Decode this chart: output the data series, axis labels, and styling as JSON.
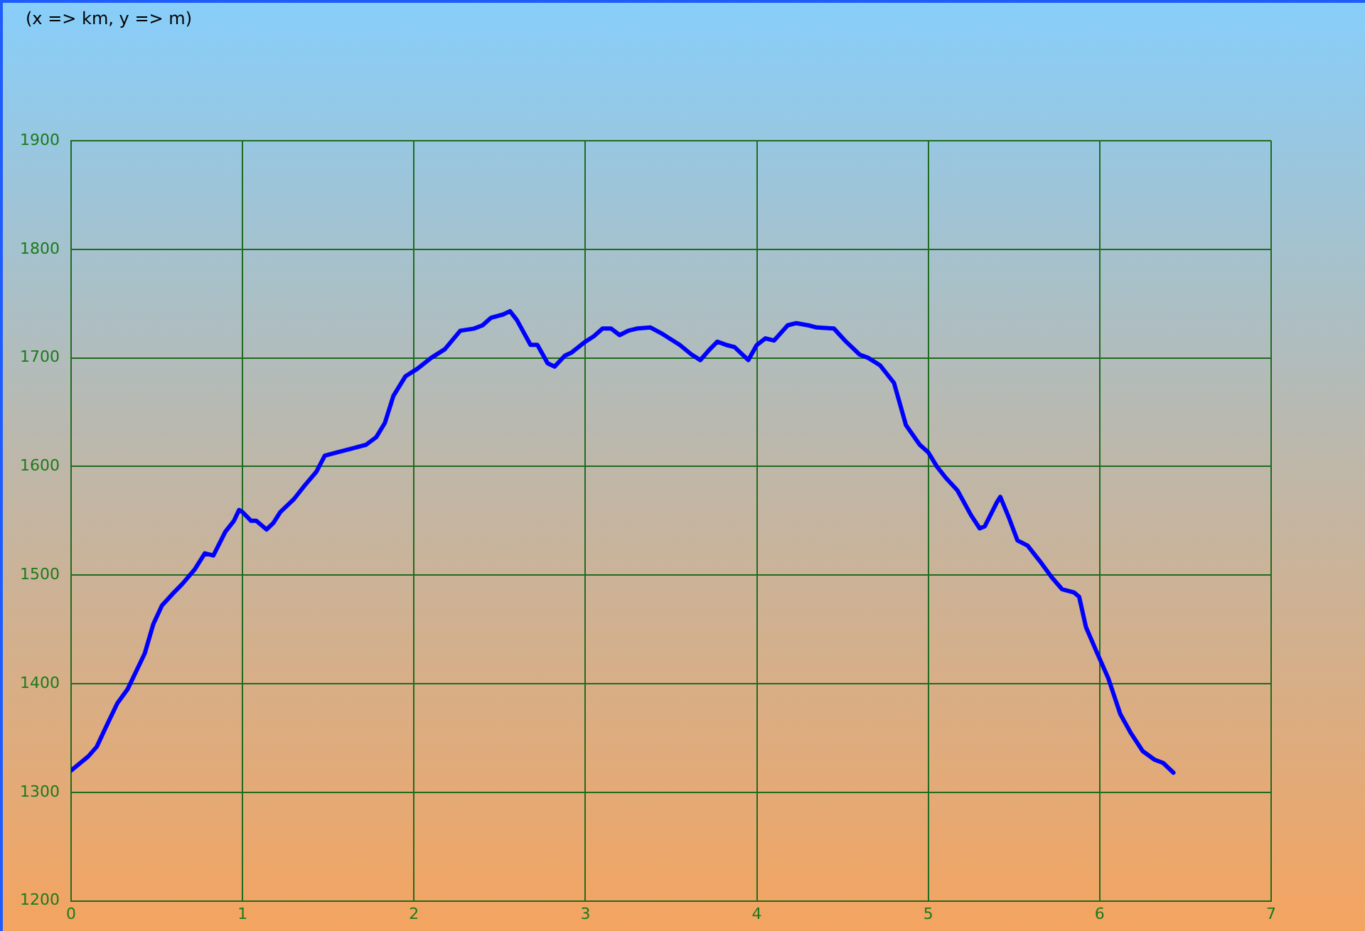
{
  "chart_data": {
    "type": "line",
    "annotations": [
      "(x => km, y => m)"
    ],
    "x": [
      0,
      0.1,
      0.15,
      0.2,
      0.27,
      0.33,
      0.43,
      0.48,
      0.53,
      0.6,
      0.65,
      0.72,
      0.78,
      0.83,
      0.9,
      0.95,
      0.98,
      1.0,
      1.05,
      1.08,
      1.14,
      1.18,
      1.22,
      1.3,
      1.36,
      1.43,
      1.48,
      1.55,
      1.65,
      1.72,
      1.78,
      1.83,
      1.88,
      1.95,
      2.02,
      2.1,
      2.18,
      2.27,
      2.35,
      2.4,
      2.45,
      2.52,
      2.56,
      2.6,
      2.68,
      2.72,
      2.78,
      2.82,
      2.88,
      2.92,
      3.0,
      3.05,
      3.1,
      3.15,
      3.2,
      3.25,
      3.3,
      3.38,
      3.45,
      3.55,
      3.62,
      3.67,
      3.72,
      3.77,
      3.82,
      3.87,
      3.95,
      4.0,
      4.05,
      4.1,
      4.18,
      4.23,
      4.3,
      4.35,
      4.45,
      4.52,
      4.6,
      4.65,
      4.72,
      4.8,
      4.87,
      4.95,
      5.0,
      5.05,
      5.1,
      5.17,
      5.25,
      5.3,
      5.33,
      5.4,
      5.42,
      5.47,
      5.52,
      5.58,
      5.65,
      5.72,
      5.78,
      5.85,
      5.88,
      5.92,
      5.98,
      6.05,
      6.12,
      6.18,
      6.25,
      6.32,
      6.37,
      6.43
    ],
    "series": [
      {
        "color": "#0000ff",
        "values": [
          1320,
          1333,
          1342,
          1359,
          1382,
          1395,
          1428,
          1455,
          1472,
          1484,
          1492,
          1505,
          1520,
          1518,
          1540,
          1550,
          1560,
          1558,
          1550,
          1550,
          1542,
          1548,
          1558,
          1570,
          1582,
          1595,
          1610,
          1613,
          1617,
          1620,
          1627,
          1640,
          1665,
          1683,
          1690,
          1700,
          1708,
          1725,
          1727,
          1730,
          1737,
          1740,
          1743,
          1735,
          1712,
          1712,
          1695,
          1692,
          1702,
          1705,
          1715,
          1720,
          1727,
          1727,
          1721,
          1725,
          1727,
          1728,
          1722,
          1712,
          1703,
          1698,
          1707,
          1715,
          1712,
          1710,
          1698,
          1712,
          1718,
          1716,
          1730,
          1732,
          1730,
          1728,
          1727,
          1715,
          1703,
          1700,
          1693,
          1677,
          1638,
          1620,
          1613,
          1600,
          1590,
          1578,
          1555,
          1543,
          1545,
          1567,
          1572,
          1553,
          1532,
          1527,
          1513,
          1498,
          1487,
          1484,
          1480,
          1452,
          1430,
          1405,
          1372,
          1355,
          1338,
          1330,
          1327,
          1318
        ]
      }
    ],
    "xlim": [
      0,
      7
    ],
    "xticks": [
      0,
      1,
      2,
      3,
      4,
      5,
      6,
      7
    ],
    "ylim": [
      1200,
      1900
    ],
    "yticks": [
      1200,
      1300,
      1400,
      1500,
      1600,
      1700,
      1800,
      1900
    ],
    "grid": true,
    "marker": "none",
    "line_style": "solid"
  }
}
